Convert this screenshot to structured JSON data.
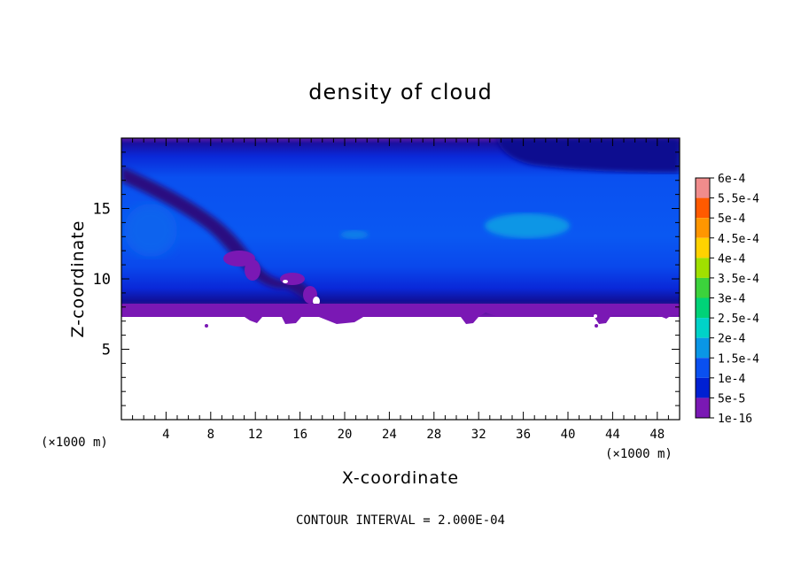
{
  "chart_data": {
    "type": "heatmap",
    "title": "density of cloud",
    "xlabel": "X-coordinate",
    "ylabel": "Z-coordinate",
    "x_unit": "(×1000 m)",
    "y_unit": "(×1000 m)",
    "xlim": [
      0,
      50
    ],
    "ylim": [
      0,
      20
    ],
    "x_ticks": [
      4,
      8,
      12,
      16,
      20,
      24,
      28,
      32,
      36,
      40,
      44,
      48
    ],
    "y_ticks": [
      5,
      10,
      15
    ],
    "x_tick_labels": [
      "4",
      "8",
      "12",
      "16",
      "20",
      "24",
      "28",
      "32",
      "36",
      "40",
      "44",
      "48"
    ],
    "y_tick_labels": [
      "5",
      "10",
      "15"
    ],
    "footer": "CONTOUR INTERVAL = 2.000E-04",
    "colorbar": {
      "levels": [
        {
          "label": "6e-4",
          "color": "#f08c8c"
        },
        {
          "label": "5.5e-4",
          "color": "#ff2020"
        },
        {
          "label": "5e-4",
          "color": "#ff5a00"
        },
        {
          "label": "4.5e-4",
          "color": "#ff9600"
        },
        {
          "label": "4e-4",
          "color": "#ffd200"
        },
        {
          "label": "3.5e-4",
          "color": "#a0e000"
        },
        {
          "label": "3e-4",
          "color": "#3cd23c"
        },
        {
          "label": "2.5e-4",
          "color": "#00d278"
        },
        {
          "label": "2e-4",
          "color": "#00d2c8"
        },
        {
          "label": "1.5e-4",
          "color": "#0a96e6"
        },
        {
          "label": "1e-4",
          "color": "#0a50f0"
        },
        {
          "label": "5e-5",
          "color": "#0020d2"
        },
        {
          "label": "1e-16",
          "color": "#7a18b4"
        }
      ]
    },
    "field_regions": [
      {
        "x": [
          0,
          50
        ],
        "z": [
          7.5,
          20
        ],
        "value_label": "1e-4",
        "note": "broad cloud layer"
      },
      {
        "x": [
          33,
          42
        ],
        "z": [
          13,
          15.5
        ],
        "value_label": "1.5e-4"
      },
      {
        "x": [
          19,
          22
        ],
        "z": [
          13,
          13.5
        ],
        "value_label": "1.5e-4"
      },
      {
        "x": [
          0,
          50
        ],
        "z": [
          19.5,
          20
        ],
        "value_label": "1e-16",
        "note": "cloud top edge"
      },
      {
        "x": [
          0,
          50
        ],
        "z": [
          7.5,
          8.5
        ],
        "value_label": "1e-16",
        "note": "cloud base edge"
      }
    ]
  }
}
